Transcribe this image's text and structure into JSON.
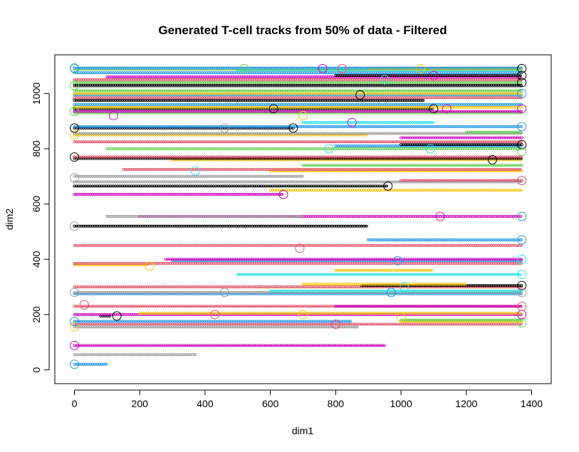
{
  "chart_data": {
    "type": "scatter",
    "title": "Generated T-cell tracks from 50% of data - Filtered",
    "xlabel": "dim1",
    "ylabel": "dim2",
    "xlim": [
      -60,
      1460
    ],
    "ylim": [
      -50,
      1140
    ],
    "xticks": [
      0,
      200,
      400,
      600,
      800,
      1000,
      1200,
      1400
    ],
    "yticks": [
      0,
      200,
      400,
      600,
      800,
      1000
    ],
    "grid": false,
    "legend": "none",
    "palette": {
      "black": "#000000",
      "red": "#DF536B",
      "green": "#61D04F",
      "blue": "#2297E6",
      "cyan": "#28E2E5",
      "magenta": "#CD0BBC",
      "yellow": "#F5C710",
      "gray": "#9E9E9E"
    },
    "series": [
      {
        "color": "blue",
        "x0": 0,
        "x1": 100,
        "y": 20
      },
      {
        "color": "gray",
        "x0": 0,
        "x1": 370,
        "y": 55
      },
      {
        "color": "magenta",
        "x0": 0,
        "x1": 950,
        "y": 88
      },
      {
        "color": "gray",
        "x0": 0,
        "x1": 870,
        "y": 155
      },
      {
        "color": "red",
        "x0": 0,
        "x1": 1370,
        "y": 165
      },
      {
        "color": "blue",
        "x0": 0,
        "x1": 850,
        "y": 175
      },
      {
        "color": "yellow",
        "x0": 1000,
        "x1": 1370,
        "y": 175
      },
      {
        "color": "green",
        "x0": 1000,
        "x1": 1370,
        "y": 180
      },
      {
        "color": "black",
        "x0": 80,
        "x1": 110,
        "y": 195
      },
      {
        "color": "magenta",
        "x0": 0,
        "x1": 1370,
        "y": 200
      },
      {
        "color": "yellow",
        "x0": 200,
        "x1": 1370,
        "y": 205
      },
      {
        "color": "red",
        "x0": 0,
        "x1": 1370,
        "y": 230
      },
      {
        "color": "magenta",
        "x0": 800,
        "x1": 1370,
        "y": 230
      },
      {
        "color": "blue",
        "x0": 0,
        "x1": 1370,
        "y": 275
      },
      {
        "color": "gray",
        "x0": 0,
        "x1": 1370,
        "y": 280
      },
      {
        "color": "cyan",
        "x0": 600,
        "x1": 1370,
        "y": 285
      },
      {
        "color": "red",
        "x0": 0,
        "x1": 1370,
        "y": 300
      },
      {
        "color": "black",
        "x0": 880,
        "x1": 1370,
        "y": 305
      },
      {
        "color": "yellow",
        "x0": 700,
        "x1": 1200,
        "y": 310
      },
      {
        "color": "cyan",
        "x0": 500,
        "x1": 1370,
        "y": 345
      },
      {
        "color": "yellow",
        "x0": 800,
        "x1": 1100,
        "y": 360
      },
      {
        "color": "yellow",
        "x0": 0,
        "x1": 230,
        "y": 380
      },
      {
        "color": "red",
        "x0": 0,
        "x1": 1370,
        "y": 385
      },
      {
        "color": "blue",
        "x0": 300,
        "x1": 1370,
        "y": 395
      },
      {
        "color": "magenta",
        "x0": 280,
        "x1": 1370,
        "y": 400
      },
      {
        "color": "red",
        "x0": 0,
        "x1": 1370,
        "y": 450
      },
      {
        "color": "blue",
        "x0": 900,
        "x1": 1370,
        "y": 470
      },
      {
        "color": "black",
        "x0": 0,
        "x1": 900,
        "y": 520
      },
      {
        "color": "magenta",
        "x0": 200,
        "x1": 1370,
        "y": 555
      },
      {
        "color": "gray",
        "x0": 100,
        "x1": 700,
        "y": 555
      },
      {
        "color": "magenta",
        "x0": 0,
        "x1": 640,
        "y": 635
      },
      {
        "color": "yellow",
        "x0": 600,
        "x1": 1370,
        "y": 650
      },
      {
        "color": "black",
        "x0": 0,
        "x1": 960,
        "y": 665
      },
      {
        "color": "gray",
        "x0": 0,
        "x1": 1370,
        "y": 680
      },
      {
        "color": "red",
        "x0": 1000,
        "x1": 1370,
        "y": 685
      },
      {
        "color": "gray",
        "x0": 0,
        "x1": 700,
        "y": 700
      },
      {
        "color": "yellow",
        "x0": 600,
        "x1": 1370,
        "y": 720
      },
      {
        "color": "red",
        "x0": 150,
        "x1": 1370,
        "y": 725
      },
      {
        "color": "green",
        "x0": 700,
        "x1": 1370,
        "y": 740
      },
      {
        "color": "yellow",
        "x0": 300,
        "x1": 1370,
        "y": 760
      },
      {
        "color": "black",
        "x0": 0,
        "x1": 1370,
        "y": 765
      },
      {
        "color": "red",
        "x0": 0,
        "x1": 1370,
        "y": 770
      },
      {
        "color": "green",
        "x0": 100,
        "x1": 1370,
        "y": 800
      },
      {
        "color": "blue",
        "x0": 800,
        "x1": 1370,
        "y": 810
      },
      {
        "color": "black",
        "x0": 1000,
        "x1": 1370,
        "y": 815
      },
      {
        "color": "red",
        "x0": 0,
        "x1": 1370,
        "y": 825
      },
      {
        "color": "magenta",
        "x0": 1000,
        "x1": 1370,
        "y": 840
      },
      {
        "color": "yellow",
        "x0": 0,
        "x1": 900,
        "y": 850
      },
      {
        "color": "gray",
        "x0": 0,
        "x1": 1370,
        "y": 855
      },
      {
        "color": "green",
        "x0": 1200,
        "x1": 1370,
        "y": 860
      },
      {
        "color": "black",
        "x0": 0,
        "x1": 670,
        "y": 875
      },
      {
        "color": "blue",
        "x0": 0,
        "x1": 1370,
        "y": 880
      },
      {
        "color": "cyan",
        "x0": 700,
        "x1": 1100,
        "y": 895
      },
      {
        "color": "green",
        "x0": 0,
        "x1": 1370,
        "y": 930
      },
      {
        "color": "magenta",
        "x0": 0,
        "x1": 1370,
        "y": 935
      },
      {
        "color": "black",
        "x0": 0,
        "x1": 1100,
        "y": 945
      },
      {
        "color": "yellow",
        "x0": 0,
        "x1": 1370,
        "y": 950
      },
      {
        "color": "blue",
        "x0": 0,
        "x1": 1370,
        "y": 960
      },
      {
        "color": "black",
        "x0": 0,
        "x1": 1070,
        "y": 975
      },
      {
        "color": "red",
        "x0": 0,
        "x1": 1370,
        "y": 985
      },
      {
        "color": "blue",
        "x0": 0,
        "x1": 1370,
        "y": 995
      },
      {
        "color": "yellow",
        "x0": 0,
        "x1": 1370,
        "y": 1000
      },
      {
        "color": "green",
        "x0": 0,
        "x1": 1370,
        "y": 1010
      },
      {
        "color": "gray",
        "x0": 0,
        "x1": 1370,
        "y": 1025
      },
      {
        "color": "black",
        "x0": 0,
        "x1": 1370,
        "y": 1030
      },
      {
        "color": "green",
        "x0": 0,
        "x1": 1370,
        "y": 1040
      },
      {
        "color": "red",
        "x0": 0,
        "x1": 1370,
        "y": 1050
      },
      {
        "color": "magenta",
        "x0": 100,
        "x1": 1370,
        "y": 1060
      },
      {
        "color": "black",
        "x0": 800,
        "x1": 1370,
        "y": 1065
      },
      {
        "color": "blue",
        "x0": 0,
        "x1": 1370,
        "y": 1075
      },
      {
        "color": "cyan",
        "x0": 500,
        "x1": 1370,
        "y": 1085
      },
      {
        "color": "green",
        "x0": 0,
        "x1": 1370,
        "y": 1088
      },
      {
        "color": "yellow",
        "x0": 900,
        "x1": 1370,
        "y": 1090
      },
      {
        "color": "blue",
        "x0": 0,
        "x1": 1370,
        "y": 1092
      }
    ],
    "endpoints": [
      {
        "color": "blue",
        "x": 0,
        "y": 20
      },
      {
        "color": "magenta",
        "x": 0,
        "y": 88
      },
      {
        "color": "yellow",
        "x": 0,
        "y": 155
      },
      {
        "color": "blue",
        "x": 0,
        "y": 175
      },
      {
        "color": "black",
        "x": 130,
        "y": 195
      },
      {
        "color": "red",
        "x": 430,
        "y": 200
      },
      {
        "color": "yellow",
        "x": 700,
        "y": 200
      },
      {
        "color": "red",
        "x": 800,
        "y": 165
      },
      {
        "color": "yellow",
        "x": 1000,
        "y": 190
      },
      {
        "color": "green",
        "x": 1370,
        "y": 170
      },
      {
        "color": "magenta",
        "x": 1370,
        "y": 200
      },
      {
        "color": "red",
        "x": 1370,
        "y": 230
      },
      {
        "color": "gray",
        "x": 0,
        "y": 280
      },
      {
        "color": "red",
        "x": 30,
        "y": 235
      },
      {
        "color": "gray",
        "x": 460,
        "y": 280
      },
      {
        "color": "blue",
        "x": 970,
        "y": 280
      },
      {
        "color": "cyan",
        "x": 1010,
        "y": 300
      },
      {
        "color": "black",
        "x": 1370,
        "y": 305
      },
      {
        "color": "gray",
        "x": 1370,
        "y": 280
      },
      {
        "color": "cyan",
        "x": 1370,
        "y": 345
      },
      {
        "color": "yellow",
        "x": 230,
        "y": 375
      },
      {
        "color": "red",
        "x": 690,
        "y": 440
      },
      {
        "color": "blue",
        "x": 990,
        "y": 395
      },
      {
        "color": "cyan",
        "x": 1370,
        "y": 400
      },
      {
        "color": "blue",
        "x": 1370,
        "y": 470
      },
      {
        "color": "gray",
        "x": 0,
        "y": 520
      },
      {
        "color": "magenta",
        "x": 1120,
        "y": 555
      },
      {
        "color": "blue",
        "x": 1370,
        "y": 555
      },
      {
        "color": "magenta",
        "x": 640,
        "y": 635
      },
      {
        "color": "black",
        "x": 960,
        "y": 665
      },
      {
        "color": "gray",
        "x": 0,
        "y": 695
      },
      {
        "color": "red",
        "x": 1370,
        "y": 685
      },
      {
        "color": "black",
        "x": 0,
        "y": 770
      },
      {
        "color": "cyan",
        "x": 370,
        "y": 720
      },
      {
        "color": "black",
        "x": 1280,
        "y": 760
      },
      {
        "color": "green",
        "x": 1370,
        "y": 790
      },
      {
        "color": "cyan",
        "x": 780,
        "y": 800
      },
      {
        "color": "cyan",
        "x": 1090,
        "y": 800
      },
      {
        "color": "black",
        "x": 1370,
        "y": 815
      },
      {
        "color": "yellow",
        "x": 0,
        "y": 850
      },
      {
        "color": "black",
        "x": 0,
        "y": 875
      },
      {
        "color": "black",
        "x": 670,
        "y": 875
      },
      {
        "color": "gray",
        "x": 460,
        "y": 875
      },
      {
        "color": "magenta",
        "x": 850,
        "y": 895
      },
      {
        "color": "blue",
        "x": 1370,
        "y": 880
      },
      {
        "color": "green",
        "x": 0,
        "y": 935
      },
      {
        "color": "magenta",
        "x": 120,
        "y": 920
      },
      {
        "color": "black",
        "x": 610,
        "y": 945
      },
      {
        "color": "yellow",
        "x": 700,
        "y": 920
      },
      {
        "color": "black",
        "x": 1100,
        "y": 945
      },
      {
        "color": "magenta",
        "x": 1140,
        "y": 945
      },
      {
        "color": "magenta",
        "x": 1370,
        "y": 945
      },
      {
        "color": "black",
        "x": 875,
        "y": 995
      },
      {
        "color": "blue",
        "x": 1370,
        "y": 1000
      },
      {
        "color": "green",
        "x": 0,
        "y": 1030
      },
      {
        "color": "green",
        "x": 0,
        "y": 1090
      },
      {
        "color": "blue",
        "x": 0,
        "y": 1092
      },
      {
        "color": "green",
        "x": 520,
        "y": 1090
      },
      {
        "color": "magenta",
        "x": 760,
        "y": 1090
      },
      {
        "color": "red",
        "x": 820,
        "y": 1090
      },
      {
        "color": "yellow",
        "x": 1060,
        "y": 1090
      },
      {
        "color": "magenta",
        "x": 1100,
        "y": 1065
      },
      {
        "color": "cyan",
        "x": 950,
        "y": 1050
      },
      {
        "color": "black",
        "x": 1370,
        "y": 1065
      },
      {
        "color": "black",
        "x": 1370,
        "y": 1090
      },
      {
        "color": "black",
        "x": 1370,
        "y": 1040
      }
    ]
  }
}
